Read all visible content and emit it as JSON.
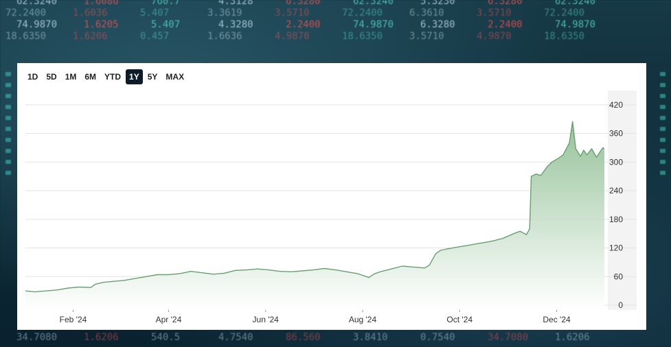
{
  "background_ticker": {
    "rows": [
      [
        "62.3240",
        "1.6086",
        "760.7",
        "4.3128",
        "6.3280",
        "62.3240",
        "5.3230",
        "6.3280",
        "62.3240"
      ],
      [
        "72.2400",
        "1.6036",
        "5.407",
        "3.3619",
        "3.5710",
        "72.2400",
        "6.3610",
        "3.5710",
        "72.2400"
      ],
      [
        "74.9870",
        "1.6205",
        "5.407",
        "4.3280",
        "2.2400",
        "74.9870",
        "6.3280",
        "2.2400",
        "74.9870"
      ],
      [
        "18.6350",
        "1.6206",
        "0.457",
        "1.6636",
        "4.9870",
        "18.6350",
        "3.5710",
        "4.9870",
        "18.6350"
      ]
    ],
    "bottom_row": [
      "34.7080",
      "1.6206",
      "540.5",
      "4.7540",
      "86.560",
      "3.8410",
      "0.7540",
      "34.7080",
      "1.6206"
    ]
  },
  "range_selector": {
    "options": [
      "1D",
      "5D",
      "1M",
      "6M",
      "YTD",
      "1Y",
      "5Y",
      "MAX"
    ],
    "selected": "1Y"
  },
  "colors": {
    "line": "#6a9e73",
    "fill_top": "#8fbf93",
    "grid": "#e3e3e3",
    "axis_text": "#333333",
    "active_bg": "#0e1b2b"
  },
  "chart_data": {
    "type": "area",
    "title": "",
    "xlabel": "",
    "ylabel": "",
    "x_ticks": [
      "Feb '24",
      "Apr '24",
      "Jun '24",
      "Aug '24",
      "Oct '24",
      "Dec '24"
    ],
    "x_tick_dates": [
      "2024-02-01",
      "2024-04-01",
      "2024-06-01",
      "2024-08-01",
      "2024-10-01",
      "2024-12-01"
    ],
    "y_ticks": [
      0,
      60,
      120,
      180,
      240,
      300,
      360,
      420
    ],
    "ylim": [
      -10,
      450
    ],
    "xlim": [
      "2024-01-02",
      "2024-12-31"
    ],
    "y_axis_side": "right",
    "grid": true,
    "series": [
      {
        "values": [
          [
            "2024-01-02",
            30
          ],
          [
            "2024-01-08",
            28
          ],
          [
            "2024-01-15",
            30
          ],
          [
            "2024-01-22",
            32
          ],
          [
            "2024-01-29",
            36
          ],
          [
            "2024-02-05",
            38
          ],
          [
            "2024-02-12",
            37
          ],
          [
            "2024-02-15",
            44
          ],
          [
            "2024-02-20",
            48
          ],
          [
            "2024-02-26",
            50
          ],
          [
            "2024-03-04",
            52
          ],
          [
            "2024-03-11",
            56
          ],
          [
            "2024-03-18",
            60
          ],
          [
            "2024-03-25",
            64
          ],
          [
            "2024-04-01",
            64
          ],
          [
            "2024-04-08",
            66
          ],
          [
            "2024-04-15",
            71
          ],
          [
            "2024-04-22",
            68
          ],
          [
            "2024-04-29",
            65
          ],
          [
            "2024-05-06",
            67
          ],
          [
            "2024-05-13",
            73
          ],
          [
            "2024-05-20",
            74
          ],
          [
            "2024-05-27",
            76
          ],
          [
            "2024-06-03",
            74
          ],
          [
            "2024-06-10",
            71
          ],
          [
            "2024-06-17",
            70
          ],
          [
            "2024-06-24",
            72
          ],
          [
            "2024-07-01",
            74
          ],
          [
            "2024-07-08",
            77
          ],
          [
            "2024-07-15",
            74
          ],
          [
            "2024-07-22",
            70
          ],
          [
            "2024-07-29",
            66
          ],
          [
            "2024-08-05",
            58
          ],
          [
            "2024-08-08",
            65
          ],
          [
            "2024-08-12",
            70
          ],
          [
            "2024-08-19",
            76
          ],
          [
            "2024-08-26",
            82
          ],
          [
            "2024-09-02",
            80
          ],
          [
            "2024-09-09",
            78
          ],
          [
            "2024-09-12",
            84
          ],
          [
            "2024-09-16",
            108
          ],
          [
            "2024-09-19",
            115
          ],
          [
            "2024-09-23",
            118
          ],
          [
            "2024-09-30",
            122
          ],
          [
            "2024-10-07",
            126
          ],
          [
            "2024-10-14",
            130
          ],
          [
            "2024-10-21",
            134
          ],
          [
            "2024-10-28",
            140
          ],
          [
            "2024-11-04",
            150
          ],
          [
            "2024-11-08",
            155
          ],
          [
            "2024-11-12",
            148
          ],
          [
            "2024-11-14",
            160
          ],
          [
            "2024-11-15",
            270
          ],
          [
            "2024-11-18",
            275
          ],
          [
            "2024-11-21",
            272
          ],
          [
            "2024-11-25",
            290
          ],
          [
            "2024-11-28",
            300
          ],
          [
            "2024-12-02",
            308
          ],
          [
            "2024-12-05",
            315
          ],
          [
            "2024-12-09",
            340
          ],
          [
            "2024-12-11",
            385
          ],
          [
            "2024-12-13",
            328
          ],
          [
            "2024-12-16",
            312
          ],
          [
            "2024-12-18",
            325
          ],
          [
            "2024-12-20",
            315
          ],
          [
            "2024-12-23",
            328
          ],
          [
            "2024-12-26",
            310
          ],
          [
            "2024-12-30",
            330
          ],
          [
            "2024-12-31",
            328
          ]
        ]
      }
    ]
  }
}
